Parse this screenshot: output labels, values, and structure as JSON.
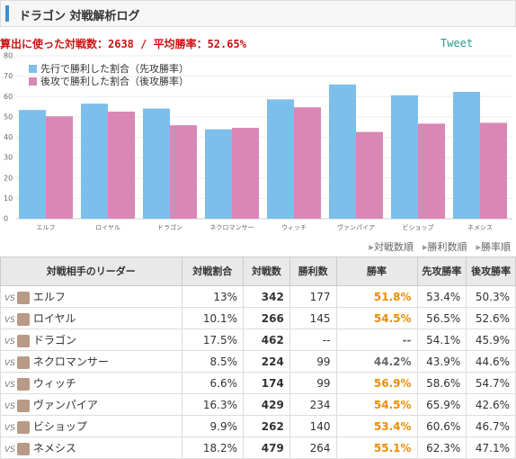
{
  "header": {
    "title": "ドラゴン 対戦解析ログ"
  },
  "summary": {
    "text": "算出に使った対戦数：2638 / 平均勝率：52.65%",
    "tweet": "Tweet"
  },
  "chart_data": {
    "type": "bar",
    "categories": [
      "エルフ",
      "ロイヤル",
      "ドラゴン",
      "ネクロマンサー",
      "ウィッチ",
      "ヴァンパイア",
      "ビショップ",
      "ネメシス"
    ],
    "series": [
      {
        "name": "先行で勝利した割合（先攻勝率）",
        "color": "#7dbfeb",
        "values": [
          53.4,
          56.5,
          54.1,
          43.9,
          58.6,
          65.9,
          60.6,
          62.3
        ]
      },
      {
        "name": "後攻で勝利した割合（後攻勝率）",
        "color": "#d987b5",
        "values": [
          50.3,
          52.6,
          45.9,
          44.6,
          54.7,
          42.6,
          46.7,
          47.1
        ]
      }
    ],
    "ylim": [
      0,
      80
    ],
    "yticks": [
      0,
      10,
      20,
      30,
      40,
      50,
      60,
      70,
      80
    ],
    "grid": true,
    "legend": "top-left"
  },
  "sort_links": [
    "対戦数順",
    "勝利数順",
    "勝率順"
  ],
  "table": {
    "vs": "VS",
    "columns": [
      "対戦相手のリーダー",
      "対戦割合",
      "対戦数",
      "勝利数",
      "勝率",
      "先攻勝率",
      "後攻勝率"
    ],
    "rows": [
      [
        "エルフ",
        "13%",
        "342",
        "177",
        "51.8%",
        "53.4%",
        "50.3%"
      ],
      [
        "ロイヤル",
        "10.1%",
        "266",
        "145",
        "54.5%",
        "56.5%",
        "52.6%"
      ],
      [
        "ドラゴン",
        "17.5%",
        "462",
        "--",
        "--",
        "54.1%",
        "45.9%"
      ],
      [
        "ネクロマンサー",
        "8.5%",
        "224",
        "99",
        "44.2%",
        "43.9%",
        "44.6%"
      ],
      [
        "ウィッチ",
        "6.6%",
        "174",
        "99",
        "56.9%",
        "58.6%",
        "54.7%"
      ],
      [
        "ヴァンパイア",
        "16.3%",
        "429",
        "234",
        "54.5%",
        "65.9%",
        "42.6%"
      ],
      [
        "ビショップ",
        "9.9%",
        "262",
        "140",
        "53.4%",
        "60.6%",
        "46.7%"
      ],
      [
        "ネメシス",
        "18.2%",
        "479",
        "264",
        "55.1%",
        "62.3%",
        "47.1%"
      ]
    ],
    "rate_colors": [
      "#f08c00",
      "#f08c00",
      "#666666",
      "#666666",
      "#f08c00",
      "#f08c00",
      "#f08c00",
      "#f08c00"
    ]
  }
}
